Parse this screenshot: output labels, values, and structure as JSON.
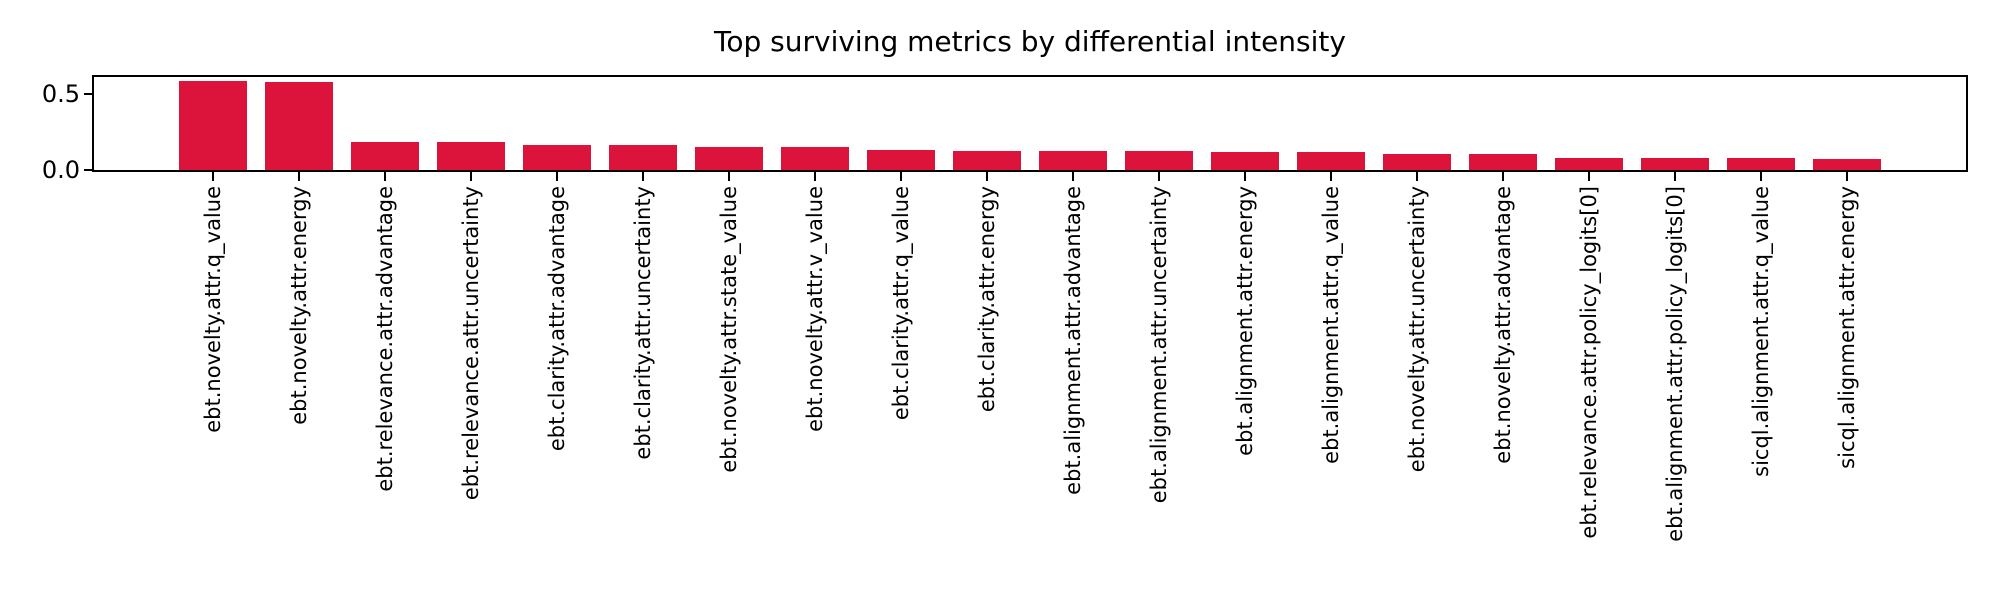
{
  "chart_data": {
    "type": "bar",
    "title": "Top surviving metrics by differential intensity",
    "xlabel": "",
    "ylabel": "",
    "categories": [
      "ebt.novelty.attr.q_value",
      "ebt.novelty.attr.energy",
      "ebt.relevance.attr.advantage",
      "ebt.relevance.attr.uncertainty",
      "ebt.clarity.attr.advantage",
      "ebt.clarity.attr.uncertainty",
      "ebt.novelty.attr.state_value",
      "ebt.novelty.attr.v_value",
      "ebt.clarity.attr.q_value",
      "ebt.clarity.attr.energy",
      "ebt.alignment.attr.advantage",
      "ebt.alignment.attr.uncertainty",
      "ebt.alignment.attr.energy",
      "ebt.alignment.attr.q_value",
      "ebt.novelty.attr.uncertainty",
      "ebt.novelty.attr.advantage",
      "ebt.relevance.attr.policy_logits[0]",
      "ebt.alignment.attr.policy_logits[0]",
      "sicql.alignment.attr.q_value",
      "sicql.alignment.attr.energy"
    ],
    "values": [
      0.585,
      0.584,
      0.187,
      0.185,
      0.168,
      0.167,
      0.152,
      0.15,
      0.129,
      0.128,
      0.127,
      0.126,
      0.121,
      0.12,
      0.105,
      0.103,
      0.08,
      0.078,
      0.077,
      0.072
    ],
    "ylim": [
      0,
      0.614
    ],
    "yticks": {
      "values": [
        0.0,
        0.5
      ],
      "labels": [
        "0.0",
        "0.5"
      ]
    },
    "x_tick_label_rotation_deg": 90,
    "grid": "off",
    "legend": "none",
    "colors": {
      "bar": "#DC143C",
      "spine": "#000000",
      "text": "#000000",
      "background": "#ffffff"
    }
  }
}
